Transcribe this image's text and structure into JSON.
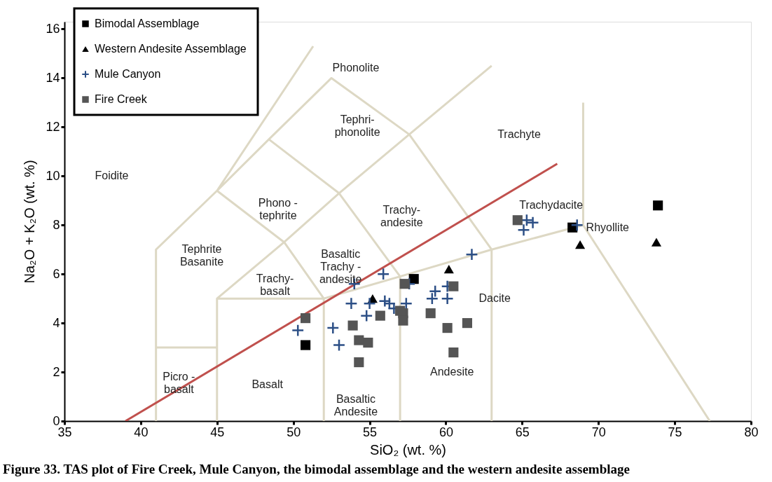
{
  "chart_data": {
    "type": "scatter",
    "xlabel": "SiO₂ (wt. %)",
    "ylabel": "Na₂O + K₂O (wt. %)",
    "xlim": [
      35,
      80
    ],
    "ylim": [
      0,
      16.3
    ],
    "xticks": [
      35,
      40,
      45,
      50,
      55,
      60,
      65,
      70,
      75,
      80
    ],
    "yticks": [
      0,
      2,
      4,
      6,
      8,
      10,
      12,
      14,
      16
    ],
    "grid": false,
    "legend": "top left",
    "annotations": [
      "Phonolite",
      "Tephri-\nphonolite",
      "Trachyte",
      "Foidite",
      "Phono -\ntephrite",
      "Trachy-\nandesite",
      "Trachydacite",
      "Rhyollite",
      "Tephrite\nBasanite",
      "Basaltic\nTrachy -\nandesite",
      "Trachy-\nbasalt",
      "Dacite",
      "Picro -\nbasalt",
      "Basalt",
      "Andesite",
      "Basaltic\nAndesite",
      "Figure 33. TAS plot of Fire Creek, Mule Canyon, the bimodal assemblage and the western andesite assemblage"
    ],
    "series": [
      {
        "type": "line",
        "color": "#ddd8c4",
        "x": [
          41,
          41,
          45,
          48.4,
          52.5,
          57.6,
          63,
          null,
          41,
          45,
          null,
          45,
          45,
          49.4,
          53,
          57.6,
          null,
          45,
          52,
          52,
          null,
          52,
          57,
          57,
          null,
          57,
          63,
          63,
          null,
          63,
          69,
          77.3,
          null,
          69,
          69,
          null,
          52,
          49.4,
          45,
          null,
          57,
          53,
          48.4,
          null,
          45,
          51.3,
          null,
          57.6,
          63
        ],
        "values": [
          0,
          7,
          9.4,
          11.5,
          14,
          11.7,
          7,
          null,
          3,
          3,
          null,
          0,
          5,
          7.3,
          9.3,
          11.7,
          null,
          5,
          5,
          0,
          null,
          5,
          5.9,
          0,
          null,
          5.9,
          7,
          0,
          null,
          7,
          8,
          0,
          null,
          8,
          13,
          null,
          5,
          7.3,
          9.4,
          null,
          5.9,
          9.3,
          11.5,
          null,
          9.4,
          15.3,
          null,
          11.7,
          14.5
        ]
      },
      {
        "type": "line",
        "color": "#c0504d",
        "x": [
          39,
          67.3
        ],
        "values": [
          0,
          10.5
        ]
      },
      {
        "name": "Bimodal Assemblage",
        "marker": "square",
        "color": "#000000",
        "x": [
          50.8,
          57.9,
          68.3,
          73.9
        ],
        "values": [
          3.1,
          5.8,
          7.9,
          8.8
        ]
      },
      {
        "name": "Western Andesite Assemblage",
        "marker": "triangle",
        "color": "#000000",
        "x": [
          55.2,
          60.2,
          68.8,
          73.8
        ],
        "values": [
          5.0,
          6.2,
          7.2,
          7.3
        ]
      },
      {
        "name": "Mule Canyon",
        "marker": "cross",
        "color": "#2c4f86",
        "x": [
          50.3,
          52.6,
          53.0,
          54.0,
          53.8,
          54.8,
          55.0,
          55.9,
          56.0,
          56.3,
          56.6,
          57.4,
          57.6,
          59.3,
          59.1,
          60.1,
          60.1,
          61.7,
          65.3,
          65.1,
          65.7,
          68.6
        ],
        "values": [
          3.7,
          3.8,
          3.1,
          5.6,
          4.8,
          4.3,
          4.8,
          6.0,
          4.9,
          4.8,
          4.6,
          4.8,
          5.6,
          5.3,
          5.0,
          5.0,
          5.5,
          6.8,
          8.2,
          7.8,
          8.1,
          8.0
        ]
      },
      {
        "name": "Fire Creek",
        "marker": "square",
        "color": "#555555",
        "x": [
          50.8,
          53.9,
          54.3,
          54.9,
          54.3,
          55.7,
          57.2,
          57.2,
          57.0,
          57.3,
          59.0,
          60.5,
          60.1,
          61.4,
          60.5,
          64.7
        ],
        "values": [
          4.2,
          3.9,
          3.3,
          3.2,
          2.4,
          4.3,
          4.4,
          4.1,
          4.5,
          5.6,
          4.4,
          5.5,
          3.8,
          4.0,
          2.8,
          8.2
        ]
      }
    ]
  }
}
